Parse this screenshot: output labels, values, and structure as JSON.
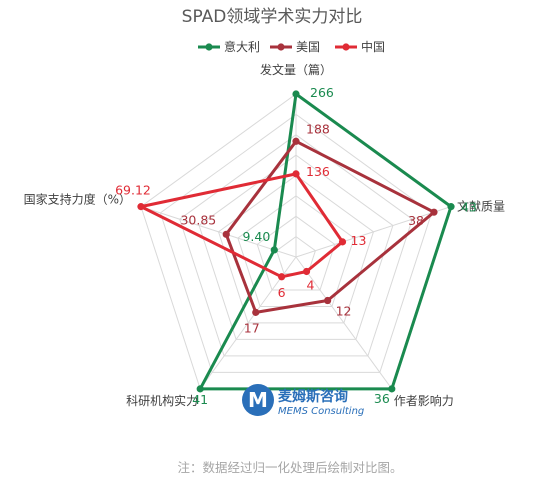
{
  "chart_data": {
    "type": "radar",
    "title": "SPAD领域学术实力对比",
    "axes": [
      "发文量（篇）",
      "文献质量",
      "作者影响力",
      "科研机构实力",
      "国家支持力度（%）"
    ],
    "series": [
      {
        "name": "意大利",
        "color": "#1a8a4f",
        "raw_labels": [
          "266",
          "43",
          "36",
          "41",
          "9.40"
        ],
        "normalized": [
          1.0,
          1.0,
          1.0,
          1.0,
          0.14
        ]
      },
      {
        "name": "美国",
        "color": "#a8323c",
        "raw_labels": [
          "188",
          "38",
          "12",
          "17",
          "30.85"
        ],
        "normalized": [
          0.71,
          0.89,
          0.33,
          0.42,
          0.45
        ]
      },
      {
        "name": "中国",
        "color": "#e02b35",
        "raw_labels": [
          "136",
          "13",
          "4",
          "6",
          "69.12"
        ],
        "normalized": [
          0.51,
          0.3,
          0.11,
          0.15,
          1.0
        ]
      }
    ],
    "grid_levels": 8,
    "legend_position": "top"
  },
  "note": "注：数据经过归一化处理后绘制对比图。",
  "logo": {
    "letter": "M",
    "name_cn": "麦姆斯咨询",
    "name_en": "MEMS Consulting"
  }
}
